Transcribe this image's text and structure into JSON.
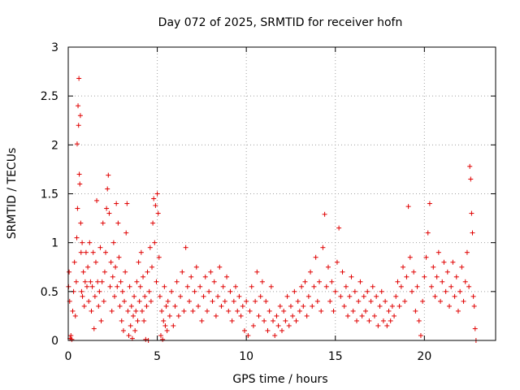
{
  "chart_data": {
    "type": "scatter",
    "title": "Day 072 of 2025, SRMTID for receiver hofn",
    "xlabel": "GPS time / hours",
    "ylabel": "SRMTID / TECUs",
    "xlim": [
      0,
      24
    ],
    "ylim": [
      0,
      3
    ],
    "xticks": [
      "0",
      "5",
      "10",
      "15",
      "20"
    ],
    "yticks": [
      "0",
      "0.5",
      "1",
      "1.5",
      "2",
      "2.5",
      "3"
    ],
    "grid": true,
    "marker": "plus",
    "color": "#e00000",
    "series": [
      {
        "name": "SRMTID",
        "points": [
          [
            0.02,
            0.55
          ],
          [
            0.05,
            0.7
          ],
          [
            0.08,
            0.4
          ],
          [
            0.1,
            0.02
          ],
          [
            0.15,
            0.05
          ],
          [
            0.2,
            0.01
          ],
          [
            0.25,
            0.3
          ],
          [
            0.3,
            0.5
          ],
          [
            0.35,
            0.8
          ],
          [
            0.4,
            0.25
          ],
          [
            0.45,
            0.6
          ],
          [
            0.48,
            1.05
          ],
          [
            0.5,
            2.01
          ],
          [
            0.52,
            1.35
          ],
          [
            0.55,
            2.4
          ],
          [
            0.58,
            2.2
          ],
          [
            0.6,
            2.68
          ],
          [
            0.62,
            1.7
          ],
          [
            0.65,
            1.6
          ],
          [
            0.68,
            2.3
          ],
          [
            0.7,
            1.2
          ],
          [
            0.72,
            0.9
          ],
          [
            0.75,
            0.5
          ],
          [
            0.78,
            1.0
          ],
          [
            0.8,
            0.45
          ],
          [
            0.85,
            0.7
          ],
          [
            0.9,
            0.35
          ],
          [
            0.95,
            0.6
          ],
          [
            1.0,
            0.9
          ],
          [
            1.05,
            0.55
          ],
          [
            1.1,
            0.75
          ],
          [
            1.15,
            0.4
          ],
          [
            1.2,
            1.0
          ],
          [
            1.25,
            0.6
          ],
          [
            1.3,
            0.3
          ],
          [
            1.35,
            0.55
          ],
          [
            1.4,
            0.9
          ],
          [
            1.45,
            0.12
          ],
          [
            1.5,
            0.45
          ],
          [
            1.55,
            0.8
          ],
          [
            1.6,
            1.43
          ],
          [
            1.65,
            0.6
          ],
          [
            1.7,
            0.35
          ],
          [
            1.75,
            0.5
          ],
          [
            1.8,
            0.95
          ],
          [
            1.85,
            0.2
          ],
          [
            1.9,
            0.6
          ],
          [
            1.95,
            1.2
          ],
          [
            2.0,
            0.4
          ],
          [
            2.05,
            0.7
          ],
          [
            2.1,
            0.9
          ],
          [
            2.15,
            1.35
          ],
          [
            2.2,
            1.55
          ],
          [
            2.25,
            1.69
          ],
          [
            2.3,
            1.3
          ],
          [
            2.35,
            0.55
          ],
          [
            2.4,
            0.8
          ],
          [
            2.45,
            0.3
          ],
          [
            2.5,
            0.65
          ],
          [
            2.55,
            1.0
          ],
          [
            2.6,
            0.45
          ],
          [
            2.65,
            0.75
          ],
          [
            2.7,
            1.4
          ],
          [
            2.75,
            0.55
          ],
          [
            2.8,
            1.2
          ],
          [
            2.85,
            0.85
          ],
          [
            2.9,
            0.35
          ],
          [
            2.95,
            0.6
          ],
          [
            3.0,
            0.2
          ],
          [
            3.05,
            0.5
          ],
          [
            3.1,
            0.1
          ],
          [
            3.15,
            0.4
          ],
          [
            3.2,
            0.7
          ],
          [
            3.25,
            1.1
          ],
          [
            3.3,
            1.4
          ],
          [
            3.35,
            0.3
          ],
          [
            3.4,
            0.05
          ],
          [
            3.45,
            0.55
          ],
          [
            3.5,
            0.15
          ],
          [
            3.55,
            0.35
          ],
          [
            3.6,
            0.02
          ],
          [
            3.65,
            0.25
          ],
          [
            3.7,
            0.45
          ],
          [
            3.75,
            0.1
          ],
          [
            3.8,
            0.3
          ],
          [
            3.85,
            0.6
          ],
          [
            3.9,
            0.2
          ],
          [
            3.95,
            0.8
          ],
          [
            4.0,
            0.4
          ],
          [
            4.05,
            0.55
          ],
          [
            4.1,
            0.9
          ],
          [
            4.15,
            0.3
          ],
          [
            4.2,
            0.65
          ],
          [
            4.25,
            0.2
          ],
          [
            4.3,
            0.45
          ],
          [
            4.35,
            0.01
          ],
          [
            4.4,
            0.35
          ],
          [
            4.45,
            0.7
          ],
          [
            4.5,
            0.0
          ],
          [
            4.55,
            0.5
          ],
          [
            4.6,
            0.95
          ],
          [
            4.65,
            0.4
          ],
          [
            4.7,
            0.75
          ],
          [
            4.75,
            1.2
          ],
          [
            4.8,
            1.45
          ],
          [
            4.85,
            1.0
          ],
          [
            4.9,
            1.38
          ],
          [
            4.95,
            0.6
          ],
          [
            5.0,
            1.5
          ],
          [
            5.05,
            1.3
          ],
          [
            5.1,
            0.85
          ],
          [
            5.15,
            0.45
          ],
          [
            5.2,
            0.05
          ],
          [
            5.25,
            0.3
          ],
          [
            5.3,
            0.01
          ],
          [
            5.35,
            0.2
          ],
          [
            5.4,
            0.55
          ],
          [
            5.45,
            0.15
          ],
          [
            5.5,
            0.35
          ],
          [
            5.55,
            0.1
          ],
          [
            5.6,
            0.4
          ],
          [
            5.7,
            0.25
          ],
          [
            5.8,
            0.5
          ],
          [
            5.9,
            0.15
          ],
          [
            6.0,
            0.35
          ],
          [
            6.1,
            0.6
          ],
          [
            6.2,
            0.25
          ],
          [
            6.3,
            0.45
          ],
          [
            6.4,
            0.7
          ],
          [
            6.5,
            0.3
          ],
          [
            6.6,
            0.95
          ],
          [
            6.7,
            0.55
          ],
          [
            6.8,
            0.4
          ],
          [
            6.9,
            0.65
          ],
          [
            7.0,
            0.3
          ],
          [
            7.1,
            0.5
          ],
          [
            7.2,
            0.75
          ],
          [
            7.3,
            0.35
          ],
          [
            7.4,
            0.55
          ],
          [
            7.5,
            0.2
          ],
          [
            7.6,
            0.45
          ],
          [
            7.7,
            0.65
          ],
          [
            7.8,
            0.3
          ],
          [
            7.9,
            0.5
          ],
          [
            8.0,
            0.7
          ],
          [
            8.1,
            0.4
          ],
          [
            8.2,
            0.6
          ],
          [
            8.3,
            0.25
          ],
          [
            8.4,
            0.45
          ],
          [
            8.5,
            0.75
          ],
          [
            8.6,
            0.35
          ],
          [
            8.7,
            0.55
          ],
          [
            8.8,
            0.4
          ],
          [
            8.9,
            0.65
          ],
          [
            9.0,
            0.3
          ],
          [
            9.1,
            0.5
          ],
          [
            9.2,
            0.2
          ],
          [
            9.3,
            0.4
          ],
          [
            9.4,
            0.55
          ],
          [
            9.5,
            0.3
          ],
          [
            9.6,
            0.45
          ],
          [
            9.7,
            0.25
          ],
          [
            9.8,
            0.35
          ],
          [
            9.9,
            0.1
          ],
          [
            10.0,
            0.4
          ],
          [
            10.1,
            0.05
          ],
          [
            10.2,
            0.3
          ],
          [
            10.3,
            0.55
          ],
          [
            10.4,
            0.15
          ],
          [
            10.5,
            0.4
          ],
          [
            10.6,
            0.7
          ],
          [
            10.7,
            0.25
          ],
          [
            10.8,
            0.45
          ],
          [
            10.9,
            0.6
          ],
          [
            11.0,
            0.2
          ],
          [
            11.1,
            0.4
          ],
          [
            11.2,
            0.1
          ],
          [
            11.3,
            0.3
          ],
          [
            11.4,
            0.55
          ],
          [
            11.5,
            0.2
          ],
          [
            11.6,
            0.05
          ],
          [
            11.7,
            0.25
          ],
          [
            11.8,
            0.15
          ],
          [
            11.9,
            0.35
          ],
          [
            12.0,
            0.1
          ],
          [
            12.1,
            0.3
          ],
          [
            12.2,
            0.2
          ],
          [
            12.3,
            0.45
          ],
          [
            12.4,
            0.15
          ],
          [
            12.5,
            0.35
          ],
          [
            12.6,
            0.25
          ],
          [
            12.7,
            0.5
          ],
          [
            12.8,
            0.2
          ],
          [
            12.9,
            0.4
          ],
          [
            13.0,
            0.3
          ],
          [
            13.1,
            0.55
          ],
          [
            13.2,
            0.35
          ],
          [
            13.3,
            0.6
          ],
          [
            13.4,
            0.25
          ],
          [
            13.5,
            0.45
          ],
          [
            13.6,
            0.7
          ],
          [
            13.7,
            0.35
          ],
          [
            13.8,
            0.55
          ],
          [
            13.9,
            0.85
          ],
          [
            14.0,
            0.4
          ],
          [
            14.1,
            0.6
          ],
          [
            14.2,
            0.3
          ],
          [
            14.3,
            0.95
          ],
          [
            14.4,
            1.29
          ],
          [
            14.5,
            0.55
          ],
          [
            14.6,
            0.75
          ],
          [
            14.7,
            0.4
          ],
          [
            14.8,
            0.6
          ],
          [
            14.9,
            0.3
          ],
          [
            15.0,
            0.5
          ],
          [
            15.1,
            0.8
          ],
          [
            15.2,
            1.15
          ],
          [
            15.3,
            0.45
          ],
          [
            15.4,
            0.7
          ],
          [
            15.5,
            0.35
          ],
          [
            15.6,
            0.55
          ],
          [
            15.7,
            0.25
          ],
          [
            15.8,
            0.45
          ],
          [
            15.9,
            0.65
          ],
          [
            16.0,
            0.3
          ],
          [
            16.1,
            0.5
          ],
          [
            16.2,
            0.2
          ],
          [
            16.3,
            0.4
          ],
          [
            16.4,
            0.6
          ],
          [
            16.5,
            0.25
          ],
          [
            16.6,
            0.45
          ],
          [
            16.7,
            0.3
          ],
          [
            16.8,
            0.5
          ],
          [
            16.9,
            0.2
          ],
          [
            17.0,
            0.4
          ],
          [
            17.1,
            0.55
          ],
          [
            17.2,
            0.25
          ],
          [
            17.3,
            0.45
          ],
          [
            17.4,
            0.15
          ],
          [
            17.5,
            0.35
          ],
          [
            17.6,
            0.5
          ],
          [
            17.7,
            0.2
          ],
          [
            17.8,
            0.4
          ],
          [
            17.9,
            0.15
          ],
          [
            18.0,
            0.3
          ],
          [
            18.1,
            0.2
          ],
          [
            18.2,
            0.35
          ],
          [
            18.3,
            0.25
          ],
          [
            18.4,
            0.45
          ],
          [
            18.5,
            0.6
          ],
          [
            18.6,
            0.35
          ],
          [
            18.7,
            0.55
          ],
          [
            18.8,
            0.75
          ],
          [
            18.9,
            0.4
          ],
          [
            19.0,
            0.65
          ],
          [
            19.1,
            1.37
          ],
          [
            19.2,
            0.85
          ],
          [
            19.3,
            0.5
          ],
          [
            19.4,
            0.7
          ],
          [
            19.5,
            0.3
          ],
          [
            19.6,
            0.55
          ],
          [
            19.7,
            0.2
          ],
          [
            19.8,
            0.05
          ],
          [
            19.9,
            0.4
          ],
          [
            20.0,
            0.65
          ],
          [
            20.1,
            0.85
          ],
          [
            20.2,
            1.1
          ],
          [
            20.3,
            1.4
          ],
          [
            20.4,
            0.55
          ],
          [
            20.5,
            0.75
          ],
          [
            20.6,
            0.45
          ],
          [
            20.7,
            0.65
          ],
          [
            20.8,
            0.9
          ],
          [
            20.9,
            0.4
          ],
          [
            21.0,
            0.6
          ],
          [
            21.1,
            0.8
          ],
          [
            21.2,
            0.5
          ],
          [
            21.3,
            0.7
          ],
          [
            21.4,
            0.35
          ],
          [
            21.5,
            0.55
          ],
          [
            21.6,
            0.8
          ],
          [
            21.7,
            0.45
          ],
          [
            21.8,
            0.65
          ],
          [
            21.9,
            0.3
          ],
          [
            22.0,
            0.5
          ],
          [
            22.1,
            0.75
          ],
          [
            22.2,
            0.4
          ],
          [
            22.3,
            0.6
          ],
          [
            22.4,
            0.9
          ],
          [
            22.5,
            0.55
          ],
          [
            22.55,
            1.78
          ],
          [
            22.6,
            1.65
          ],
          [
            22.65,
            1.3
          ],
          [
            22.7,
            1.1
          ],
          [
            22.75,
            0.45
          ],
          [
            22.8,
            0.35
          ],
          [
            22.85,
            0.12
          ],
          [
            22.9,
            0.0
          ]
        ]
      }
    ]
  }
}
